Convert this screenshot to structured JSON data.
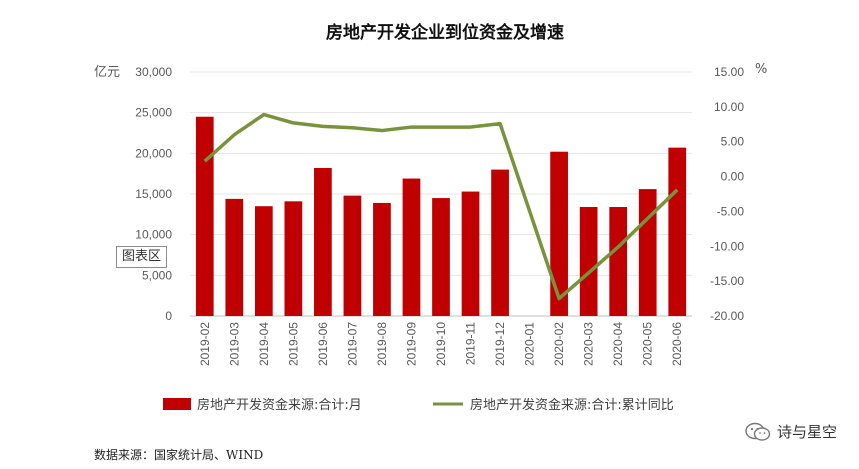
{
  "chart_data": {
    "type": "bar",
    "title": "房地产开发企业到位资金及增速",
    "categories": [
      "2019-02",
      "2019-03",
      "2019-04",
      "2019-05",
      "2019-06",
      "2019-07",
      "2019-08",
      "2019-09",
      "2019-10",
      "2019-11",
      "2019-12",
      "2020-01",
      "2020-02",
      "2020-03",
      "2020-04",
      "2020-05",
      "2020-06"
    ],
    "series": [
      {
        "name": "房地产开发资金来源:合计:月",
        "kind": "bar",
        "axis": "left",
        "color": "#c00000",
        "values": [
          24500,
          14400,
          13500,
          14100,
          18200,
          14800,
          13900,
          16900,
          14500,
          15300,
          18000,
          null,
          20200,
          13400,
          13400,
          15600,
          20700
        ]
      },
      {
        "name": "房地产开发资金来源:合计:累计同比",
        "kind": "line",
        "axis": "right",
        "color": "#77933c",
        "values": [
          2.2,
          6.0,
          8.9,
          7.7,
          7.2,
          7.0,
          6.6,
          7.1,
          7.1,
          7.1,
          7.6,
          null,
          -17.5,
          -13.8,
          -10.1,
          -6.0,
          -1.9
        ]
      }
    ],
    "y_left": {
      "unit": "亿元",
      "ylim": [
        0,
        30000
      ],
      "ticks": [
        "0",
        "5,000",
        "10,000",
        "15,000",
        "20,000",
        "25,000",
        "30,000"
      ]
    },
    "y_right": {
      "unit": "%",
      "ylim": [
        -20,
        15
      ],
      "ticks": [
        "-20.00",
        "-15.00",
        "-10.00",
        "-5.00",
        "0.00",
        "5.00",
        "10.00",
        "15.00"
      ]
    },
    "grid": true,
    "legend_position": "bottom"
  },
  "source_note": "数据来源：国家统计局、WIND",
  "tooltip_label": "图表区",
  "watermark_text": "诗与星空"
}
